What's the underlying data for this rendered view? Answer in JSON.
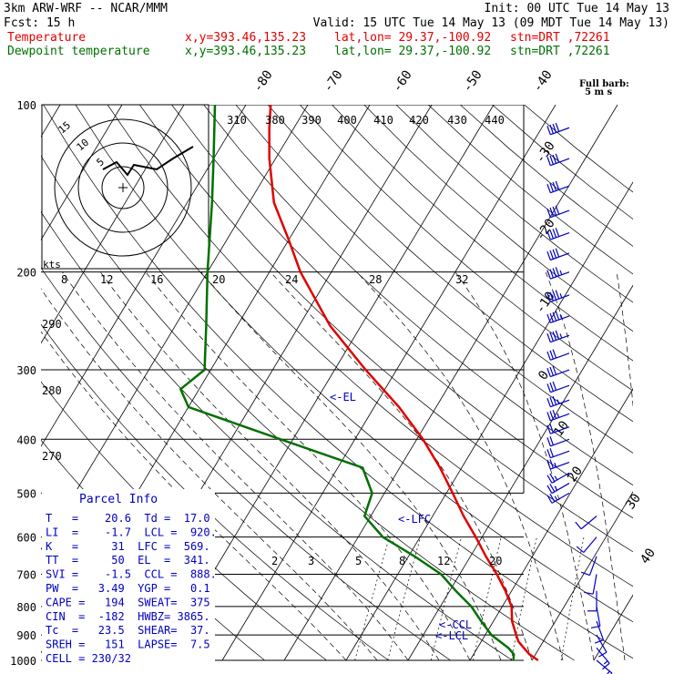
{
  "header": {
    "model": "3km ARW-WRF -- NCAR/MMM",
    "init": "Init: 00 UTC Tue 14 May 13",
    "fcst": "Fcst:    15 h",
    "valid": "Valid: 15 UTC Tue 14 May 13 (09 MDT Tue 14 May 13)",
    "temp_label": "Temperature",
    "dew_label": "Dewpoint temperature",
    "xy": "x,y=393.46,135.23",
    "latlon": "lat,lon= 29.37,-100.92",
    "stn": "stn=DRT ,72261"
  },
  "colors": {
    "temperature": "#e00000",
    "dewpoint": "#007000",
    "parcel_text": "#0000c0",
    "barbs": "#0000c0"
  },
  "pressure_labels": [
    "100",
    "200",
    "300",
    "400",
    "500",
    "600",
    "700",
    "800",
    "900",
    "1000"
  ],
  "theta_labels": [
    "310",
    "380",
    "390",
    "400",
    "410",
    "420",
    "430",
    "440"
  ],
  "isotherm_labels_top": [
    "-80",
    "-70",
    "-60",
    "-50",
    "-40"
  ],
  "isotherm_labels_right": [
    "-30",
    "-20",
    "-10",
    "0",
    "10",
    "20",
    "30",
    "40"
  ],
  "mixing_ratio_labels": [
    "2",
    "3",
    "5",
    "8",
    "12",
    "20"
  ],
  "hodograph": {
    "rings": [
      "5",
      "10",
      "15"
    ],
    "kts": "kts",
    "speed_labels": [
      "8",
      "12",
      "16",
      "20",
      "24",
      "28",
      "32"
    ],
    "temp_labels_left": [
      "290",
      "280",
      "270"
    ]
  },
  "barb_legend": {
    "line1": "Full barb:",
    "line2": "5 m s"
  },
  "markers": {
    "el": "<-EL",
    "lfc": "<-LFC",
    "ccl": "<-CCL",
    "lcl": "<-LCL"
  },
  "parcel_info": {
    "title": "Parcel Info",
    "rows": [
      "T   =    20.6  Td =  17.0",
      "LI  =    -1.7  LCL =  920.",
      "K   =     31  LFC =  569.",
      "TT  =     50  EL  =  341.",
      "SVI =    -1.5  CCL =  888.",
      "PW  =   3.49  YGP =   0.1",
      "CAPE =   194  SWEAT=  375",
      "CIN  =  -182  HWBZ= 3865.",
      "Tc  =   23.5  SHEAR=  37.",
      "SREH =   151  LAPSE=  7.5",
      "CELL = 230/32"
    ]
  },
  "chart_data": {
    "type": "line",
    "title": "3km ARW-WRF -- NCAR/MMM",
    "ylabel": "",
    "xlabel": "",
    "y_scale": "log-pressure",
    "ylim": [
      1000,
      100
    ],
    "series": [
      {
        "name": "Temperature",
        "points": [
          {
            "p": 1000,
            "t": 21
          },
          {
            "p": 975,
            "t": 19
          },
          {
            "p": 950,
            "t": 17.5
          },
          {
            "p": 925,
            "t": 16
          },
          {
            "p": 900,
            "t": 15
          },
          {
            "p": 850,
            "t": 13
          },
          {
            "p": 800,
            "t": 11.5
          },
          {
            "p": 750,
            "t": 9
          },
          {
            "p": 700,
            "t": 6
          },
          {
            "p": 650,
            "t": 2.5
          },
          {
            "p": 600,
            "t": -1
          },
          {
            "p": 550,
            "t": -5
          },
          {
            "p": 500,
            "t": -9
          },
          {
            "p": 450,
            "t": -13.5
          },
          {
            "p": 400,
            "t": -19
          },
          {
            "p": 350,
            "t": -26
          },
          {
            "p": 300,
            "t": -35
          },
          {
            "p": 250,
            "t": -45
          },
          {
            "p": 200,
            "t": -55
          },
          {
            "p": 175,
            "t": -60
          },
          {
            "p": 150,
            "t": -66
          },
          {
            "p": 125,
            "t": -71
          },
          {
            "p": 110,
            "t": -74
          },
          {
            "p": 100,
            "t": -76
          }
        ]
      },
      {
        "name": "Dewpoint temperature",
        "points": [
          {
            "p": 1000,
            "t": 17
          },
          {
            "p": 975,
            "t": 16.5
          },
          {
            "p": 950,
            "t": 15
          },
          {
            "p": 925,
            "t": 13
          },
          {
            "p": 900,
            "t": 11
          },
          {
            "p": 850,
            "t": 8
          },
          {
            "p": 800,
            "t": 5
          },
          {
            "p": 750,
            "t": 1
          },
          {
            "p": 700,
            "t": -3
          },
          {
            "p": 650,
            "t": -9
          },
          {
            "p": 600,
            "t": -16
          },
          {
            "p": 550,
            "t": -21
          },
          {
            "p": 500,
            "t": -22
          },
          {
            "p": 450,
            "t": -26
          },
          {
            "p": 400,
            "t": -42
          },
          {
            "p": 350,
            "t": -60
          },
          {
            "p": 325,
            "t": -63
          },
          {
            "p": 300,
            "t": -61
          },
          {
            "p": 250,
            "t": -65
          },
          {
            "p": 200,
            "t": -70
          },
          {
            "p": 150,
            "t": -76
          },
          {
            "p": 125,
            "t": -80
          },
          {
            "p": 100,
            "t": -85
          }
        ]
      }
    ],
    "wind_barbs": [
      {
        "p": 110,
        "dir": 250,
        "spd": 40
      },
      {
        "p": 125,
        "dir": 250,
        "spd": 40
      },
      {
        "p": 140,
        "dir": 250,
        "spd": 40
      },
      {
        "p": 155,
        "dir": 250,
        "spd": 40
      },
      {
        "p": 170,
        "dir": 250,
        "spd": 40
      },
      {
        "p": 185,
        "dir": 250,
        "spd": 40
      },
      {
        "p": 200,
        "dir": 250,
        "spd": 35
      },
      {
        "p": 220,
        "dir": 250,
        "spd": 35
      },
      {
        "p": 240,
        "dir": 250,
        "spd": 35
      },
      {
        "p": 260,
        "dir": 250,
        "spd": 35
      },
      {
        "p": 280,
        "dir": 250,
        "spd": 30
      },
      {
        "p": 300,
        "dir": 250,
        "spd": 30
      },
      {
        "p": 320,
        "dir": 250,
        "spd": 30
      },
      {
        "p": 340,
        "dir": 250,
        "spd": 25
      },
      {
        "p": 360,
        "dir": 250,
        "spd": 25
      },
      {
        "p": 380,
        "dir": 250,
        "spd": 20
      },
      {
        "p": 400,
        "dir": 250,
        "spd": 20
      },
      {
        "p": 420,
        "dir": 250,
        "spd": 20
      },
      {
        "p": 440,
        "dir": 250,
        "spd": 15
      },
      {
        "p": 460,
        "dir": 240,
        "spd": 15
      },
      {
        "p": 480,
        "dir": 240,
        "spd": 15
      },
      {
        "p": 500,
        "dir": 240,
        "spd": 15
      },
      {
        "p": 550,
        "dir": 230,
        "spd": 10
      },
      {
        "p": 600,
        "dir": 220,
        "spd": 10
      },
      {
        "p": 650,
        "dir": 200,
        "spd": 10
      },
      {
        "p": 700,
        "dir": 190,
        "spd": 10
      },
      {
        "p": 750,
        "dir": 180,
        "spd": 10
      },
      {
        "p": 800,
        "dir": 170,
        "spd": 10
      },
      {
        "p": 850,
        "dir": 160,
        "spd": 10
      },
      {
        "p": 900,
        "dir": 150,
        "spd": 10
      },
      {
        "p": 950,
        "dir": 140,
        "spd": 5
      },
      {
        "p": 1000,
        "dir": 130,
        "spd": 5
      }
    ]
  }
}
